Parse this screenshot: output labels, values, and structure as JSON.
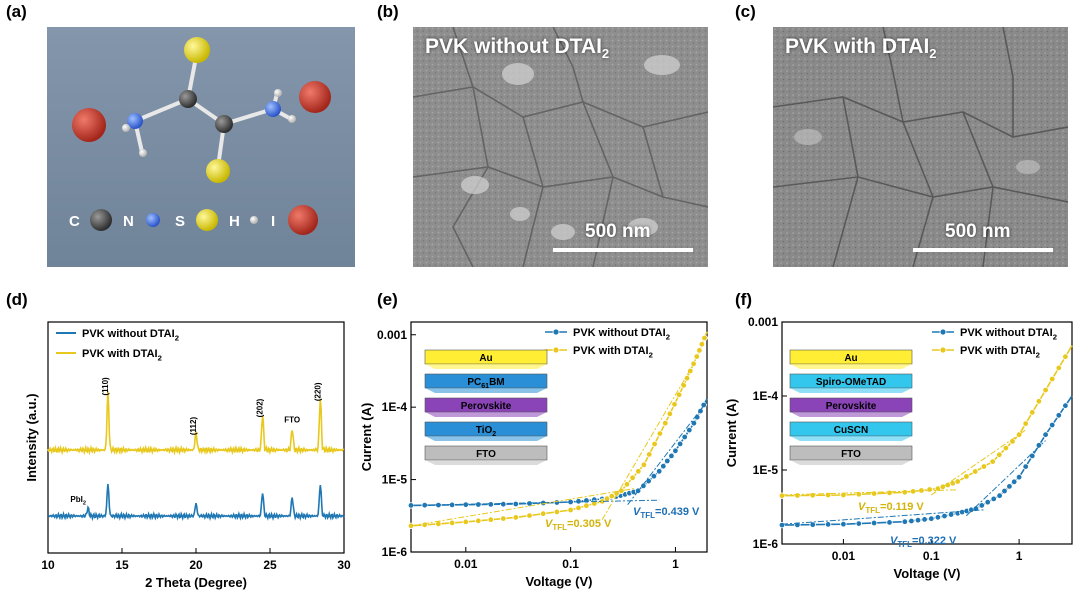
{
  "panels": {
    "a": {
      "label": "(a)",
      "legend": [
        "C",
        "N",
        "S",
        "H",
        "I"
      ]
    },
    "b": {
      "label": "(b)",
      "title_main": "PVK without DTAI",
      "title_sub": "2",
      "scale": "500 nm"
    },
    "c": {
      "label": "(c)",
      "title_main": "PVK with DTAI",
      "title_sub": "2",
      "scale": "500 nm"
    },
    "d": {
      "label": "(d)"
    },
    "e": {
      "label": "(e)"
    },
    "f": {
      "label": "(f)"
    }
  },
  "colors": {
    "without": "#1f77b4",
    "with": "#e8c81c",
    "sem_bg": "#8c8c8c",
    "mol_bg": "#7a8ea3"
  },
  "chart_data": [
    {
      "type": "line",
      "panel": "d",
      "xlabel": "2 Theta (Degree)",
      "ylabel": "Intensity (a.u.)",
      "xlim": [
        10,
        30
      ],
      "xticks": [
        10,
        15,
        20,
        25,
        30
      ],
      "series": [
        {
          "name": "PVK without DTAI2",
          "name_main": "PVK without DTAI",
          "name_sub": "2",
          "peaks": [
            [
              12.7,
              0.25
            ],
            [
              14.05,
              1.0
            ],
            [
              20.0,
              0.4
            ],
            [
              24.5,
              0.75
            ],
            [
              26.5,
              0.6
            ],
            [
              28.4,
              1.0
            ]
          ]
        },
        {
          "name": "PVK with DTAI2",
          "name_main": "PVK with DTAI",
          "name_sub": "2",
          "peaks": [
            [
              14.05,
              1.6
            ],
            [
              20.0,
              0.5
            ],
            [
              24.5,
              1.0
            ],
            [
              26.5,
              0.6
            ],
            [
              28.4,
              1.45
            ]
          ]
        }
      ],
      "annotations": [
        {
          "text": "(110)",
          "x": 14.05,
          "series": 1
        },
        {
          "text": "(112)",
          "x": 20.0,
          "series": 1
        },
        {
          "text": "(202)",
          "x": 24.5,
          "series": 1
        },
        {
          "text": "FTO",
          "x": 26.5,
          "series": 1
        },
        {
          "text": "(220)",
          "x": 28.4,
          "series": 1
        },
        {
          "text": "PbI",
          "sub": "2",
          "x": 12.7,
          "series": 0
        }
      ]
    },
    {
      "type": "line",
      "panel": "e",
      "scale": "log-log",
      "xlabel": "Voltage (V)",
      "ylabel": "Current (A)",
      "xlim": [
        0.003,
        2
      ],
      "ylim": [
        1e-06,
        0.0015
      ],
      "xticks": [
        "0.01",
        "0.1",
        "1"
      ],
      "yticks": [
        "1E-6",
        "1E-5",
        "1E-4",
        "0.001"
      ],
      "series": [
        {
          "name": "PVK without DTAI2",
          "name_main": "PVK without DTAI",
          "name_sub": "2",
          "points": [
            [
              0.003,
              4.4e-06
            ],
            [
              0.01,
              4.5e-06
            ],
            [
              0.03,
              4.6e-06
            ],
            [
              0.1,
              4.9e-06
            ],
            [
              0.2,
              5.4e-06
            ],
            [
              0.3,
              6e-06
            ],
            [
              0.44,
              7e-06
            ],
            [
              0.7,
              1.3e-05
            ],
            [
              1.0,
              2.5e-05
            ],
            [
              1.5,
              6e-05
            ],
            [
              2.0,
              0.00013
            ]
          ]
        },
        {
          "name": "PVK with DTAI2",
          "name_main": "PVK with DTAI",
          "name_sub": "2",
          "points": [
            [
              0.003,
              2.3e-06
            ],
            [
              0.01,
              2.6e-06
            ],
            [
              0.03,
              3e-06
            ],
            [
              0.1,
              3.8e-06
            ],
            [
              0.2,
              5e-06
            ],
            [
              0.305,
              7e-06
            ],
            [
              0.5,
              1.6e-05
            ],
            [
              0.8,
              6e-05
            ],
            [
              1.2,
              0.0002
            ],
            [
              1.6,
              0.0005
            ],
            [
              2.0,
              0.0011
            ]
          ]
        }
      ],
      "annotations": [
        {
          "text": "V",
          "sub": "TFL",
          "value": "=0.305 V",
          "series": 1
        },
        {
          "text": "V",
          "sub": "TFL",
          "value": "=0.439 V",
          "series": 0
        }
      ],
      "inset": [
        {
          "text": "Au",
          "color": "#ffee33"
        },
        {
          "text": "PC",
          "sub": "61",
          "tail": "BM",
          "color": "#2a8fd6"
        },
        {
          "text": "Perovskite",
          "color": "#8a44b8"
        },
        {
          "text": "TiO",
          "sub": "2",
          "tail": "",
          "color": "#2a8fd6"
        },
        {
          "text": "FTO",
          "color": "#bdbdbd"
        }
      ]
    },
    {
      "type": "line",
      "panel": "f",
      "scale": "log-log",
      "xlabel": "Voltage (V)",
      "ylabel": "Current (A)",
      "xlim": [
        0.002,
        4
      ],
      "ylim": [
        1e-06,
        0.001
      ],
      "xticks": [
        "0.01",
        "0.1",
        "1"
      ],
      "yticks": [
        "1E-6",
        "1E-5",
        "1E-4",
        "0.001"
      ],
      "series": [
        {
          "name": "PVK without DTAI2",
          "name_main": "PVK without DTAI",
          "name_sub": "2",
          "points": [
            [
              0.002,
              1.8e-06
            ],
            [
              0.01,
              1.85e-06
            ],
            [
              0.05,
              2e-06
            ],
            [
              0.1,
              2.2e-06
            ],
            [
              0.2,
              2.6e-06
            ],
            [
              0.322,
              3e-06
            ],
            [
              0.6,
              4.5e-06
            ],
            [
              1.0,
              8e-06
            ],
            [
              2.0,
              3e-05
            ],
            [
              4.0,
              0.0001
            ]
          ]
        },
        {
          "name": "PVK with DTAI2",
          "name_main": "PVK with DTAI",
          "name_sub": "2",
          "points": [
            [
              0.002,
              4.5e-06
            ],
            [
              0.01,
              4.6e-06
            ],
            [
              0.05,
              5e-06
            ],
            [
              0.119,
              5.6e-06
            ],
            [
              0.2,
              7e-06
            ],
            [
              0.5,
              1.3e-05
            ],
            [
              1.0,
              3e-05
            ],
            [
              2.0,
              0.00012
            ],
            [
              4.0,
              0.00048
            ]
          ]
        }
      ],
      "annotations": [
        {
          "text": "V",
          "sub": "TFL",
          "value": "=0.119 V",
          "series": 1
        },
        {
          "text": "V",
          "sub": "TFL",
          "value": "=0.322 V",
          "series": 0
        }
      ],
      "inset": [
        {
          "text": "Au",
          "color": "#ffee33"
        },
        {
          "text": "Spiro-OMeTAD",
          "color": "#33c7ee"
        },
        {
          "text": "Perovskite",
          "color": "#8a44b8"
        },
        {
          "text": "CuSCN",
          "color": "#33c7ee"
        },
        {
          "text": "FTO",
          "color": "#bdbdbd"
        }
      ]
    }
  ]
}
